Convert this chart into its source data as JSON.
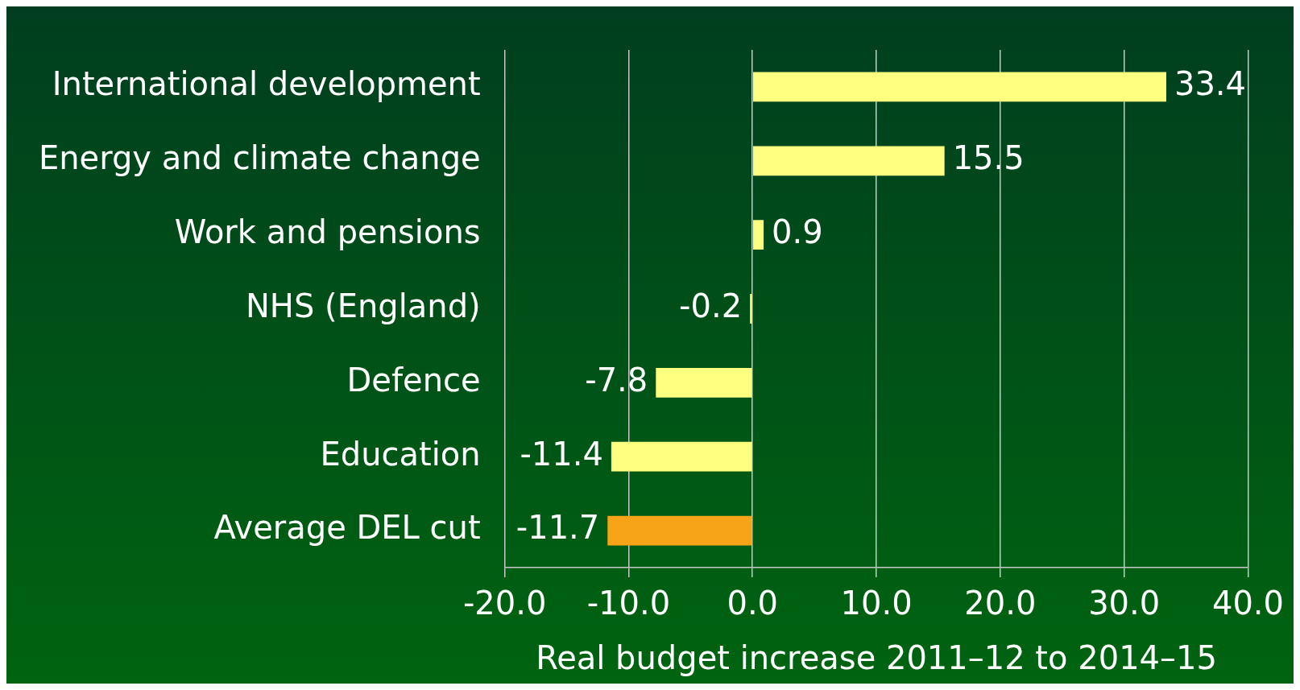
{
  "chart_data": {
    "type": "bar",
    "orientation": "horizontal",
    "xlabel": "Real budget increase 2011–12 to 2014–15",
    "categories": [
      "International development",
      "Energy and climate change",
      "Work and pensions",
      "NHS (England)",
      "Defence",
      "Education",
      "Average DEL cut"
    ],
    "values": [
      33.4,
      15.5,
      0.9,
      -0.2,
      -7.8,
      -11.4,
      -11.7
    ],
    "colors": [
      "#ffff80",
      "#ffff80",
      "#ffff80",
      "#ffff80",
      "#ffff80",
      "#ffff80",
      "#f7a418"
    ],
    "xlim": [
      -20,
      40
    ],
    "xticks": [
      {
        "value": -20,
        "label": "-20.0"
      },
      {
        "value": -10,
        "label": "-10.0"
      },
      {
        "value": 0,
        "label": "0.0"
      },
      {
        "value": 10,
        "label": "10.0"
      },
      {
        "value": 20,
        "label": "20.0"
      },
      {
        "value": 30,
        "label": "30.0"
      },
      {
        "value": 40,
        "label": "40.0"
      }
    ],
    "grid": "x",
    "data_labels": true,
    "legend": false
  }
}
